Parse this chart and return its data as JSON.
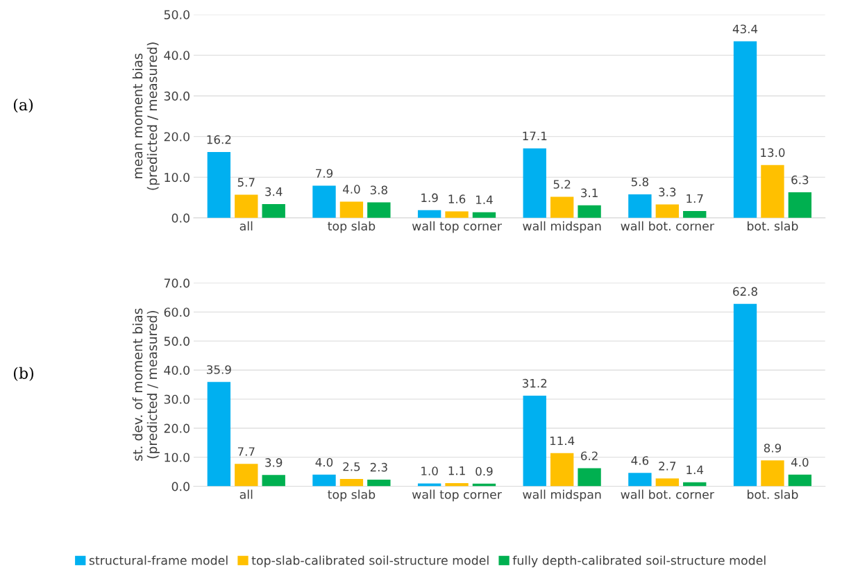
{
  "chart_data": [
    {
      "type": "bar",
      "ylabel": "mean moment bias\n(predicted / measured)",
      "annotations": [
        "(a)"
      ],
      "categories": [
        "all",
        "top slab",
        "wall top corner",
        "wall midspan",
        "wall bot. corner",
        "bot. slab"
      ],
      "series": [
        {
          "name": "structural-frame model",
          "color": "#00b0f0",
          "values": [
            16.2,
            7.9,
            1.9,
            17.1,
            5.8,
            43.4
          ],
          "value_labels": [
            "16.2",
            "7.9",
            "1.9",
            "17.1",
            "5.8",
            "43.4"
          ]
        },
        {
          "name": "top-slab-calibrated soil-structure model",
          "color": "#ffc000",
          "values": [
            5.7,
            4.0,
            1.6,
            5.2,
            3.3,
            13.0
          ],
          "value_labels": [
            "5.7",
            "4.0",
            "1.6",
            "5.2",
            "3.3",
            "13.0"
          ]
        },
        {
          "name": "fully depth-calibrated soil-structure model",
          "color": "#00b050",
          "values": [
            3.4,
            3.8,
            1.4,
            3.1,
            1.7,
            6.3
          ],
          "value_labels": [
            "3.4",
            "3.8",
            "1.4",
            "3.1",
            "1.7",
            "6.3"
          ]
        }
      ],
      "ylim": [
        0,
        50
      ],
      "yticks": [
        {
          "value": 0,
          "label": "0.0"
        },
        {
          "value": 10,
          "label": "10.0"
        },
        {
          "value": 20,
          "label": "20.0"
        },
        {
          "value": 30,
          "label": "30.0"
        },
        {
          "value": 40,
          "label": "40.0"
        },
        {
          "value": 50,
          "label": "50.0"
        }
      ],
      "grid": "y",
      "legend": "bottom"
    },
    {
      "type": "bar",
      "ylabel": "st. dev. of moment bias\n(predicted / measured)",
      "annotations": [
        "(b)"
      ],
      "categories": [
        "all",
        "top slab",
        "wall top corner",
        "wall midspan",
        "wall bot. corner",
        "bot. slab"
      ],
      "series": [
        {
          "color": "#00b0f0",
          "values": [
            35.9,
            4.0,
            1.0,
            31.2,
            4.6,
            62.8
          ],
          "value_labels": [
            "35.9",
            "4.0",
            "1.0",
            "31.2",
            "4.6",
            "62.8"
          ]
        },
        {
          "color": "#ffc000",
          "values": [
            7.7,
            2.5,
            1.1,
            11.4,
            2.7,
            8.9
          ],
          "value_labels": [
            "7.7",
            "2.5",
            "1.1",
            "11.4",
            "2.7",
            "8.9"
          ]
        },
        {
          "color": "#00b050",
          "values": [
            3.9,
            2.3,
            0.9,
            6.2,
            1.4,
            4.0
          ],
          "value_labels": [
            "3.9",
            "2.3",
            "0.9",
            "6.2",
            "1.4",
            "4.0"
          ]
        }
      ],
      "ylim": [
        0,
        70
      ],
      "yticks": [
        {
          "value": 0,
          "label": "0.0"
        },
        {
          "value": 10,
          "label": "10.0"
        },
        {
          "value": 20,
          "label": "20.0"
        },
        {
          "value": 30,
          "label": "30.0"
        },
        {
          "value": 40,
          "label": "40.0"
        },
        {
          "value": 50,
          "label": "50.0"
        },
        {
          "value": 60,
          "label": "60.0"
        },
        {
          "value": 70,
          "label": "70.0"
        }
      ],
      "grid": "y"
    }
  ]
}
